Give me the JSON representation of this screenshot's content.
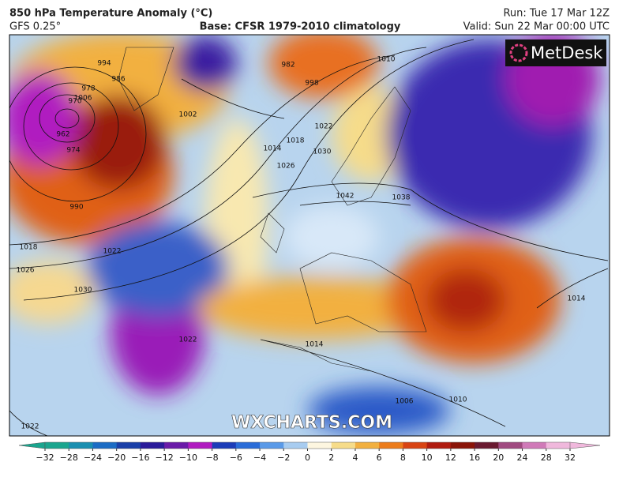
{
  "header": {
    "title": "850 hPa Temperature Anomaly (°C)",
    "model": "GFS 0.25°",
    "base": "Base: CFSR 1979-2010 climatology",
    "run": "Run: Tue 17 Mar 12Z",
    "valid": "Valid: Sun 22 Mar 00:00 UTC"
  },
  "logo": "MetDesk",
  "watermark": "WXCHARTS.COM",
  "isobars": {
    "labels": [
      994,
      986,
      978,
      970,
      962,
      974,
      990,
      1002,
      1006,
      998,
      982,
      1010,
      1014,
      1018,
      1022,
      1026,
      1030,
      1042,
      1038,
      1018,
      1022,
      1026,
      1030,
      1014,
      1006,
      1010,
      1014,
      1022,
      1022
    ]
  },
  "colorbar": {
    "ticks": [
      {
        "value": -32,
        "label": "−32"
      },
      {
        "value": -28,
        "label": "−28"
      },
      {
        "value": -24,
        "label": "−24"
      },
      {
        "value": -20,
        "label": "−20"
      },
      {
        "value": -16,
        "label": "−16"
      },
      {
        "value": -12,
        "label": "−12"
      },
      {
        "value": -10,
        "label": "−10"
      },
      {
        "value": -8,
        "label": "−8"
      },
      {
        "value": -6,
        "label": "−6"
      },
      {
        "value": -4,
        "label": "−4"
      },
      {
        "value": -2,
        "label": "−2"
      },
      0,
      2,
      4,
      6,
      8,
      10,
      12,
      16,
      20,
      24,
      28,
      32
    ],
    "colors": [
      "#1aa58e",
      "#1a8fb0",
      "#1c6cc4",
      "#1a3fa8",
      "#2a1a9a",
      "#6a1aa8",
      "#b01ac0",
      "#1c3cb8",
      "#2a6cd8",
      "#5a9ae8",
      "#a8ccf0",
      "#fdf6e0",
      "#f6dc8a",
      "#f2b040",
      "#ec7c1c",
      "#d84414",
      "#b01c10",
      "#8a1408",
      "#6a1a30",
      "#a04a80",
      "#d07ab8",
      "#f0b8dc"
    ]
  }
}
